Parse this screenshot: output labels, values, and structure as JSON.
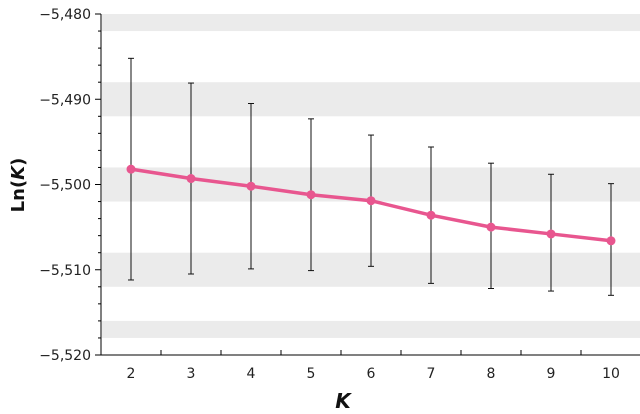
{
  "chart_data": {
    "type": "line",
    "title": "",
    "xlabel": "K",
    "ylabel_prefix": "Ln(",
    "ylabel_var": "K",
    "ylabel_suffix": ")",
    "x": [
      2,
      3,
      4,
      5,
      6,
      7,
      8,
      9,
      10
    ],
    "series": [
      {
        "values": [
          -5498.2,
          -5499.3,
          -5500.2,
          -5501.2,
          -5501.9,
          -5503.6,
          -5505.0,
          -5505.8,
          -5506.6
        ],
        "error_low": [
          -5511.2,
          -5510.5,
          -5509.9,
          -5510.1,
          -5509.6,
          -5511.6,
          -5512.2,
          -5512.5,
          -5513.0
        ],
        "error_high": [
          -5485.2,
          -5488.1,
          -5490.5,
          -5492.3,
          -5494.2,
          -5495.6,
          -5497.5,
          -5498.8,
          -5499.9
        ],
        "color": "#e8568f"
      }
    ],
    "xlim": [
      1.5,
      10.5
    ],
    "ylim": [
      -5520,
      -5480
    ],
    "yticks": [
      -5520,
      -5510,
      -5500,
      -5490,
      -5480
    ],
    "ytick_labels": [
      "−5,520",
      "−5,510",
      "−5,500",
      "−5,490",
      "−5,480"
    ],
    "grid": "alternating horizontal bands",
    "band_color": "#ebebeb",
    "legend": "none"
  }
}
